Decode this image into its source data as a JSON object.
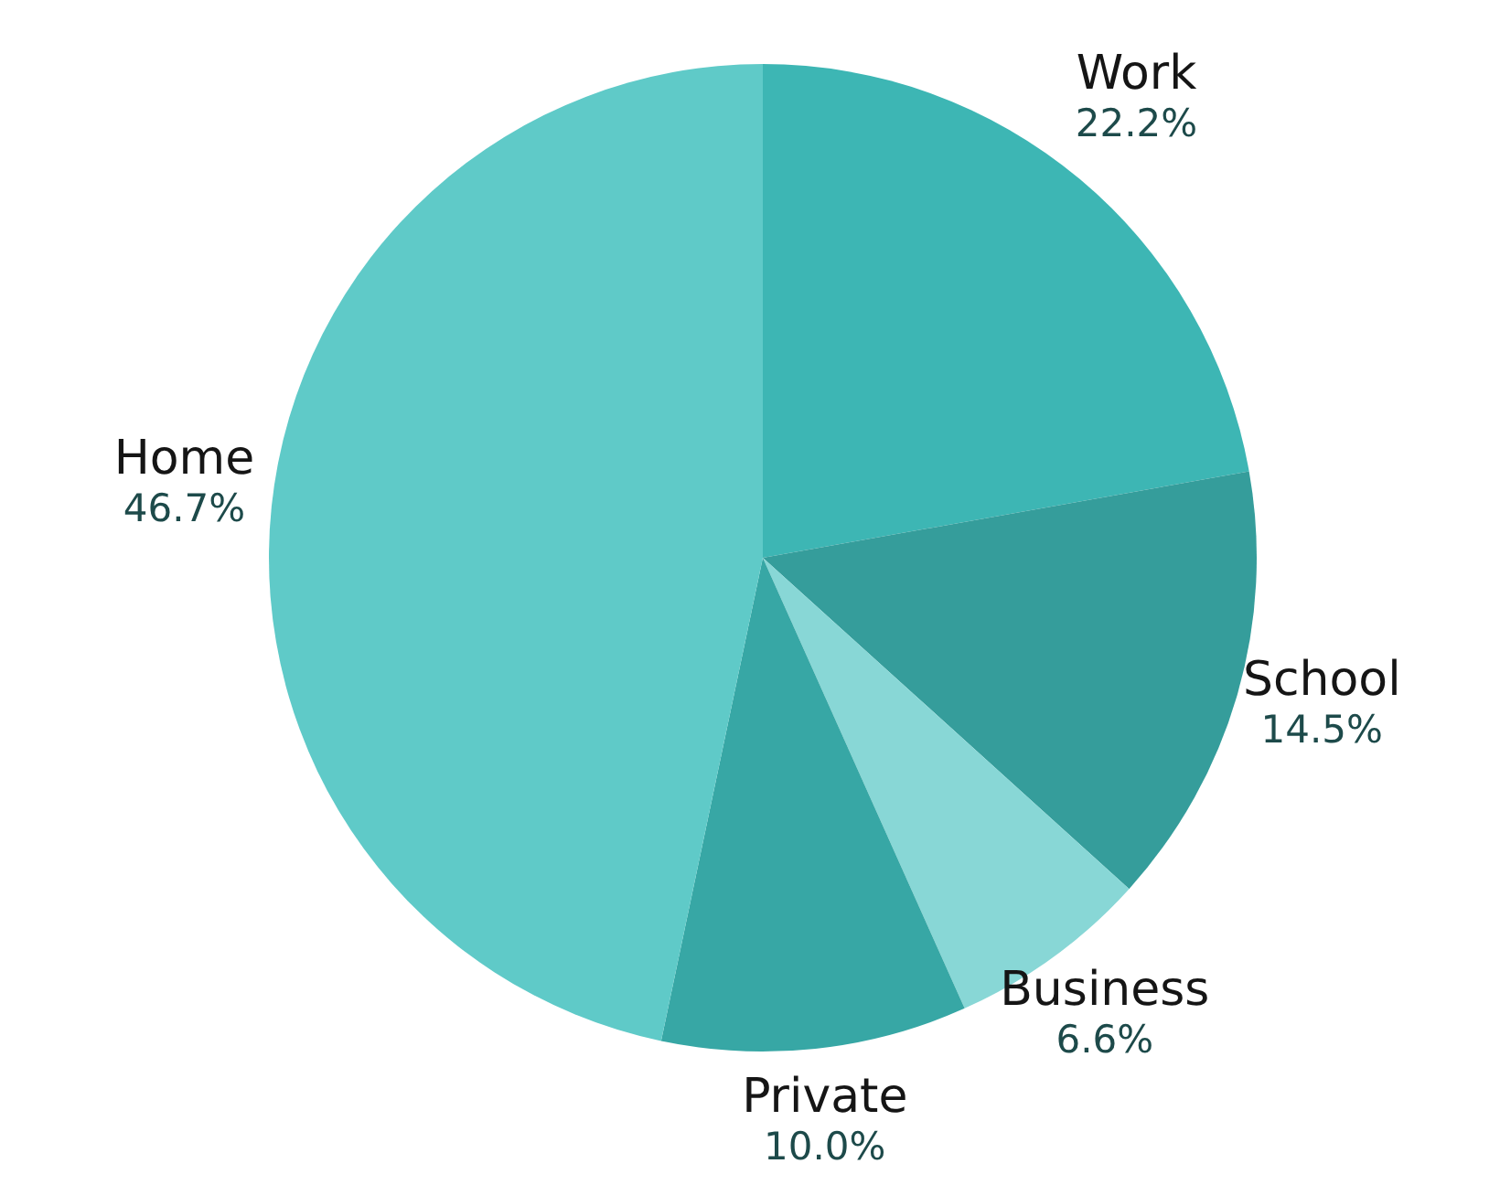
{
  "chart_data": {
    "type": "pie",
    "categories": [
      "Work",
      "School",
      "Business",
      "Private",
      "Home"
    ],
    "values": [
      22.2,
      14.5,
      6.6,
      10.0,
      46.7
    ],
    "value_labels": [
      "22.2%",
      "14.5%",
      "6.6%",
      "10.0%",
      "46.7%"
    ],
    "colors": [
      "#3db6b4",
      "#359d9b",
      "#88d7d6",
      "#37a7a5",
      "#5fcac8"
    ],
    "legend": false
  }
}
